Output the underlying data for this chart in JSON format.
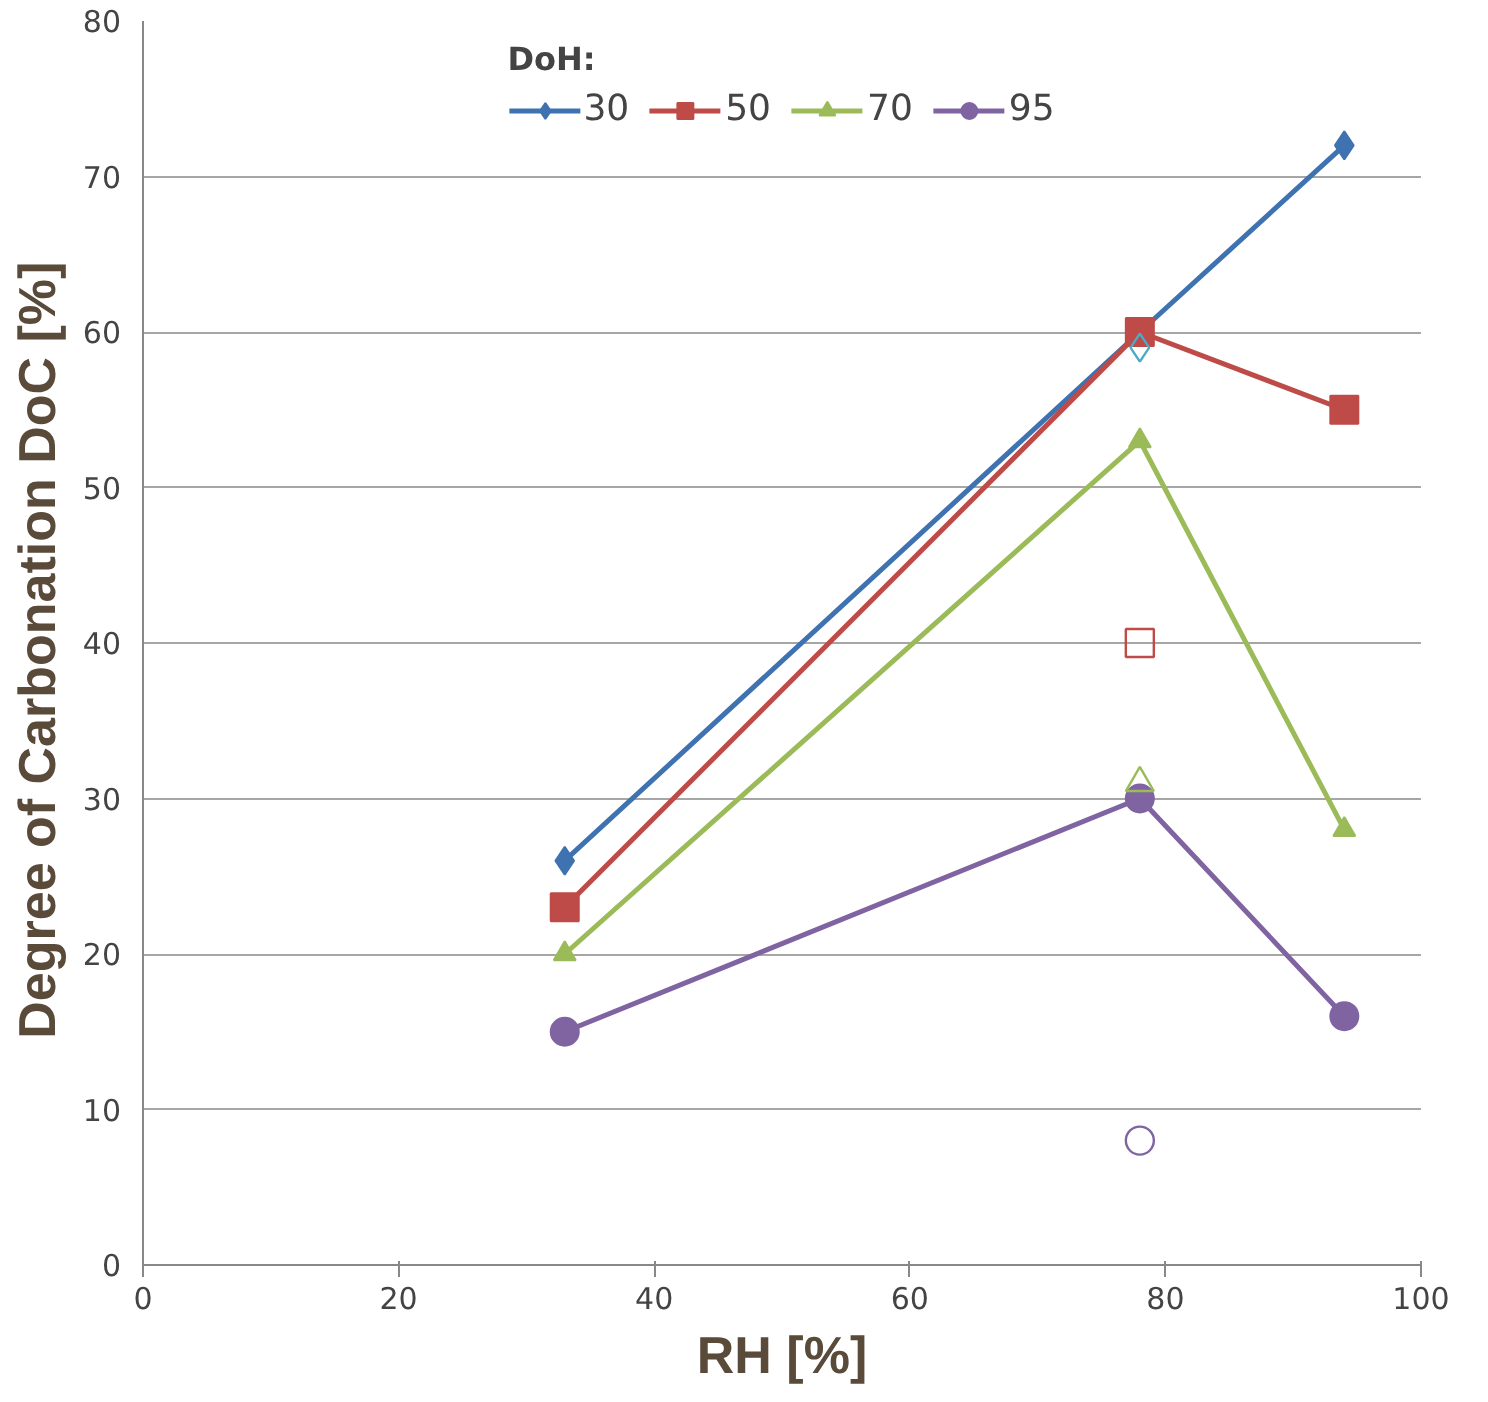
{
  "chart_data": {
    "type": "line",
    "xlabel": "RH [%]",
    "ylabel": "Degree  of Carbonation DoC [%]",
    "legend_title": "DoH:",
    "legend": "top",
    "grid": "y",
    "xlim": [
      0,
      100
    ],
    "xticks": [
      0,
      20,
      40,
      60,
      80,
      100
    ],
    "ylim": [
      0,
      80
    ],
    "yticks": [
      0,
      10,
      20,
      30,
      40,
      50,
      60,
      70,
      80
    ],
    "series": [
      {
        "name": "30",
        "color": "#3f72b0",
        "marker": "diamond",
        "x": [
          33,
          78,
          94
        ],
        "values": [
          26,
          60,
          72
        ]
      },
      {
        "name": "50",
        "color": "#be4b48",
        "marker": "square",
        "x": [
          33,
          78,
          94
        ],
        "values": [
          23,
          60,
          55
        ]
      },
      {
        "name": "70",
        "color": "#9bbb59",
        "marker": "triangle",
        "x": [
          33,
          78,
          94
        ],
        "values": [
          20,
          53,
          28
        ]
      },
      {
        "name": "95",
        "color": "#8064a2",
        "marker": "circle",
        "x": [
          33,
          78,
          94
        ],
        "values": [
          15,
          30,
          16
        ]
      },
      {
        "type": "scatter",
        "color": "#4bacc6",
        "marker": "diamond",
        "x": [
          78
        ],
        "values": [
          59
        ]
      },
      {
        "type": "scatter",
        "color": "#be4b48",
        "marker": "square",
        "x": [
          78
        ],
        "values": [
          40
        ]
      },
      {
        "type": "scatter",
        "color": "#9bbb59",
        "marker": "triangle",
        "x": [
          78
        ],
        "values": [
          31
        ]
      },
      {
        "type": "scatter",
        "color": "#8064a2",
        "marker": "circle",
        "x": [
          78
        ],
        "values": [
          8
        ]
      }
    ]
  }
}
